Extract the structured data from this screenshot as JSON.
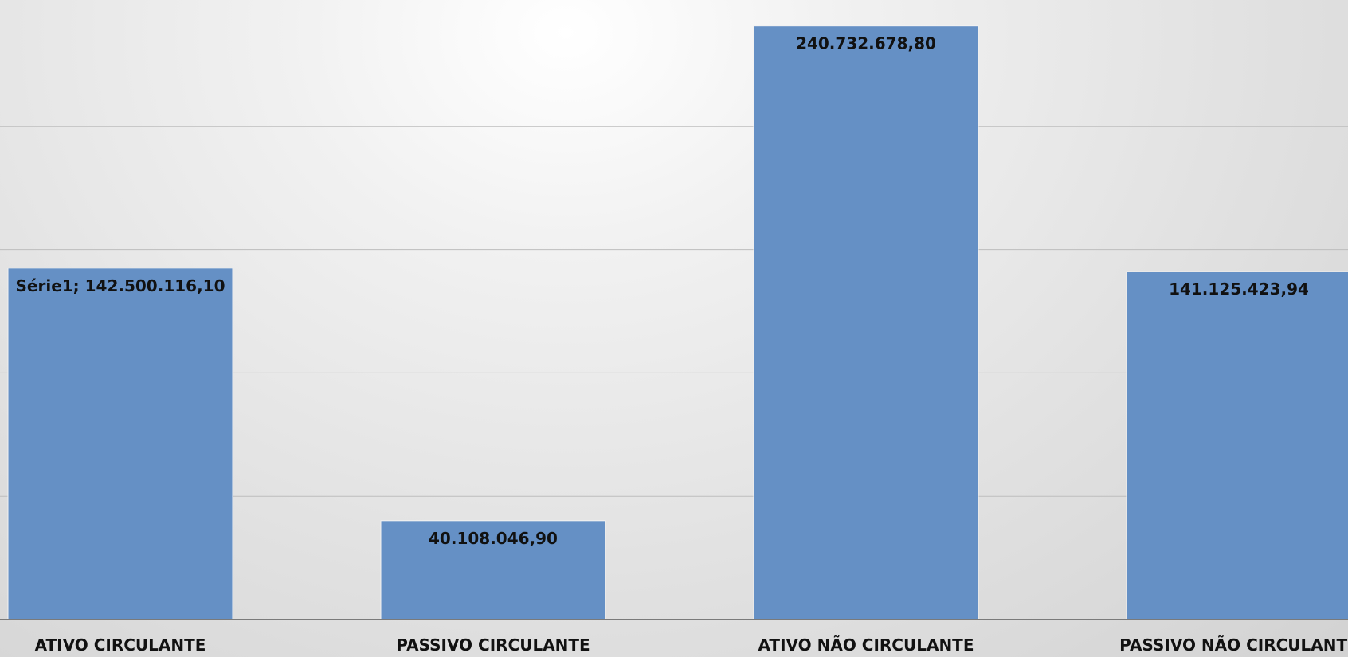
{
  "chart_data": {
    "type": "bar",
    "categories": [
      "ATIVO CIRCULANTE",
      "PASSIVO CIRCULANTE",
      "ATIVO NÃO CIRCULANTE",
      "PASSIVO NÃO CIRCULANTE"
    ],
    "series": [
      {
        "values": [
          142500116.1,
          40108046.9,
          240732678.8,
          141125423.94
        ],
        "color": "#6590c5"
      }
    ],
    "data_labels": [
      "Série1;  142.500.116,10",
      "40.108.046,90",
      "240.732.678,80",
      "141.125.423,94"
    ],
    "title": "",
    "xlabel": "",
    "ylabel": "",
    "ylim": [
      0,
      250000000
    ],
    "gridline_step": 50000000,
    "grid": true,
    "y_tick_labels_visible": false,
    "legend": "none"
  }
}
